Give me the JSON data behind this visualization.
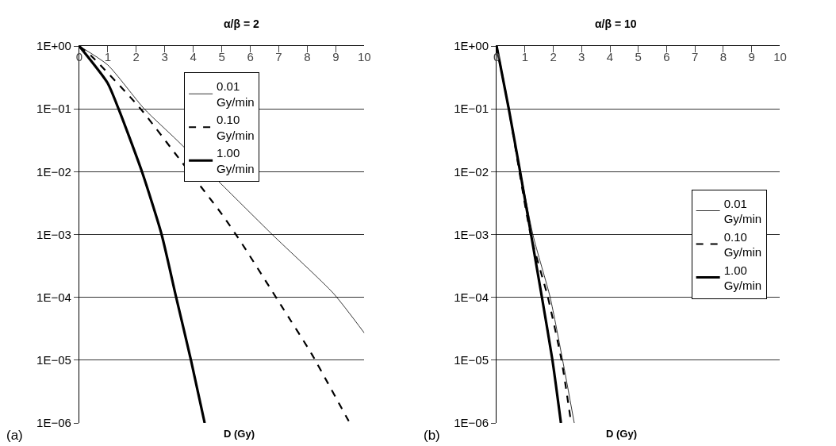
{
  "chart_data": [
    {
      "type": "line",
      "title": "α/β = 2",
      "xlabel": "D (Gy)",
      "annotations": [
        "(a)"
      ],
      "log": "y",
      "grid": "y",
      "legend": "top",
      "marker": "none",
      "xlim": [
        0,
        10
      ],
      "xticks": [
        0,
        1,
        2,
        3,
        4,
        5,
        6,
        7,
        8,
        9,
        10
      ],
      "ylim": [
        1e-06,
        1
      ],
      "yticks": [
        {
          "value": 1,
          "label": "1E+00"
        },
        {
          "value": 0.1,
          "label": "1E−01"
        },
        {
          "value": 0.01,
          "label": "1E−02"
        },
        {
          "value": 0.001,
          "label": "1E−03"
        },
        {
          "value": 0.0001,
          "label": "1E−04"
        },
        {
          "value": 1e-05,
          "label": "1E−05"
        },
        {
          "value": 1e-06,
          "label": "1E−06"
        }
      ],
      "series": [
        {
          "name": "0.01 Gy/min",
          "color": "#000000",
          "line_style": "solid",
          "x": [
            0,
            1,
            2.28,
            3.45,
            6.77,
            8.92,
            10
          ],
          "values": [
            1,
            0.5,
            0.1,
            0.031,
            0.001,
            0.000115,
            2.7e-05
          ]
        },
        {
          "name": "0.10 Gy/min",
          "color": "#000000",
          "line_style": "dashed",
          "x": [
            0,
            0.43,
            2.1,
            3.4,
            5.04,
            5.73,
            7.1,
            8.15,
            9.44,
            9.5
          ],
          "values": [
            1,
            0.69,
            0.107,
            0.0186,
            0.002,
            0.00069,
            7.2e-05,
            1.26e-05,
            1.1e-06,
            1e-06
          ]
        },
        {
          "name": "1.00 Gy/min",
          "color": "#000000",
          "line_style": "solid",
          "x": [
            0,
            0.99,
            1.38,
            2.2,
            2.89,
            3.4,
            3.92,
            4.4
          ],
          "values": [
            1,
            0.26,
            0.1,
            0.01,
            0.001,
            0.0001,
            1e-05,
            1e-06
          ]
        }
      ]
    },
    {
      "type": "line",
      "title": "α/β = 10",
      "xlabel": "D (Gy)",
      "annotations": [
        "(b)"
      ],
      "log": "y",
      "grid": "y",
      "legend": "right",
      "marker": "none",
      "xlim": [
        0,
        10
      ],
      "xticks": [
        0,
        1,
        2,
        3,
        4,
        5,
        6,
        7,
        8,
        9,
        10
      ],
      "ylim": [
        1e-06,
        1
      ],
      "yticks": [
        {
          "value": 1,
          "label": "1E+00"
        },
        {
          "value": 0.1,
          "label": "1E−01"
        },
        {
          "value": 0.01,
          "label": "1E−02"
        },
        {
          "value": 0.001,
          "label": "1E−03"
        },
        {
          "value": 0.0001,
          "label": "1E−04"
        },
        {
          "value": 1e-05,
          "label": "1E−05"
        },
        {
          "value": 1e-06,
          "label": "1E−06"
        }
      ],
      "series": [
        {
          "name": "0.01 Gy/min",
          "color": "#000000",
          "line_style": "solid",
          "x": [
            0,
            0.43,
            1.28,
            1.89,
            2.33,
            2.74
          ],
          "values": [
            1,
            0.1,
            0.001,
            0.0001,
            1e-05,
            1e-06
          ]
        },
        {
          "name": "0.10 Gy/min",
          "color": "#000000",
          "line_style": "dashed",
          "x": [
            0,
            0.43,
            1.2,
            1.81,
            2.29,
            2.63
          ],
          "values": [
            1,
            0.1,
            0.001,
            0.0001,
            1e-05,
            1e-06
          ]
        },
        {
          "name": "1.00 Gy/min",
          "color": "#000000",
          "line_style": "solid",
          "x": [
            0,
            0.43,
            0.83,
            1.6,
            1.97,
            2.27
          ],
          "values": [
            1,
            0.1,
            0.01,
            0.0001,
            1e-05,
            1e-06
          ]
        }
      ]
    }
  ]
}
